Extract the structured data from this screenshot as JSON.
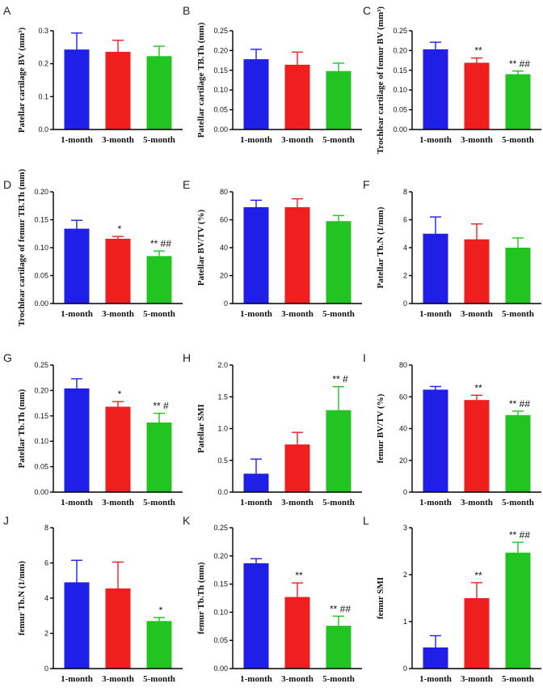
{
  "colors": {
    "blue": "#1f1fe8",
    "red": "#ef1f1f",
    "green": "#22c422"
  },
  "chart_data": [
    {
      "letter": "A",
      "type": "bar",
      "ylabel": "Patellar cartilage BV (mm³)",
      "ylim": [
        0,
        0.3
      ],
      "ticks": [
        "0.0",
        "0.1",
        "0.2",
        "0.3"
      ],
      "categories": [
        "1-month",
        "3-month",
        "5-month"
      ],
      "values": [
        0.243,
        0.236,
        0.223
      ],
      "errors": [
        0.05,
        0.035,
        0.03
      ],
      "annotations": [
        "",
        "",
        ""
      ]
    },
    {
      "letter": "B",
      "type": "bar",
      "ylabel": "Patellar cartilage TB.Th (mm)",
      "ylim": [
        0,
        0.25
      ],
      "ticks": [
        "0.00",
        "0.05",
        "0.10",
        "0.15",
        "0.20",
        "0.25"
      ],
      "categories": [
        "1-month",
        "3-month",
        "5-month"
      ],
      "values": [
        0.178,
        0.164,
        0.148
      ],
      "errors": [
        0.025,
        0.032,
        0.02
      ],
      "annotations": [
        "",
        "",
        ""
      ]
    },
    {
      "letter": "C",
      "type": "bar",
      "ylabel": "Trochlear cartilage of femur BV (mm³)",
      "ylim": [
        0,
        0.25
      ],
      "ticks": [
        "0.00",
        "0.05",
        "0.10",
        "0.15",
        "0.20",
        "0.25"
      ],
      "categories": [
        "1-month",
        "3-month",
        "5-month"
      ],
      "values": [
        0.203,
        0.169,
        0.14
      ],
      "errors": [
        0.018,
        0.012,
        0.008
      ],
      "annotations": [
        "",
        "**",
        "** ##"
      ]
    },
    {
      "letter": "D",
      "type": "bar",
      "ylabel": "Trochlear cartilage of femur TB.Th (mm)",
      "ylim": [
        0,
        0.2
      ],
      "ticks": [
        "0.00",
        "0.05",
        "0.10",
        "0.15",
        "0.20"
      ],
      "categories": [
        "1-month",
        "3-month",
        "5-month"
      ],
      "values": [
        0.134,
        0.116,
        0.085
      ],
      "errors": [
        0.015,
        0.004,
        0.009
      ],
      "annotations": [
        "",
        "*",
        "** ##"
      ]
    },
    {
      "letter": "E",
      "type": "bar",
      "ylabel": "Patellar BV/TV (%)",
      "ylim": [
        0,
        80
      ],
      "ticks": [
        "0",
        "20",
        "40",
        "60",
        "80"
      ],
      "categories": [
        "1-month",
        "3-month",
        "5-month"
      ],
      "values": [
        69,
        69,
        59
      ],
      "errors": [
        5,
        6,
        4
      ],
      "annotations": [
        "",
        "",
        ""
      ]
    },
    {
      "letter": "F",
      "type": "bar",
      "ylabel": "Patellar Tb.N (1/mm)",
      "ylim": [
        0,
        8
      ],
      "ticks": [
        "0",
        "2",
        "4",
        "6",
        "8"
      ],
      "categories": [
        "1-month",
        "3-month",
        "5-month"
      ],
      "values": [
        5.0,
        4.6,
        4.0
      ],
      "errors": [
        1.2,
        1.1,
        0.7
      ],
      "annotations": [
        "",
        "",
        ""
      ]
    },
    {
      "letter": "G",
      "type": "bar",
      "ylabel": "Patellar Tb.Th (mm)",
      "ylim": [
        0,
        0.25
      ],
      "ticks": [
        "0.00",
        "0.05",
        "0.10",
        "0.15",
        "0.20",
        "0.25"
      ],
      "categories": [
        "1-month",
        "3-month",
        "5-month"
      ],
      "values": [
        0.204,
        0.168,
        0.137
      ],
      "errors": [
        0.019,
        0.01,
        0.018
      ],
      "annotations": [
        "",
        "*",
        "** #"
      ]
    },
    {
      "letter": "H",
      "type": "bar",
      "ylabel": "Patellar SMI",
      "ylim": [
        0,
        2.0
      ],
      "ticks": [
        "0.0",
        "0.5",
        "1.0",
        "1.5",
        "2.0"
      ],
      "categories": [
        "1-month",
        "3-month",
        "5-month"
      ],
      "values": [
        0.29,
        0.75,
        1.29
      ],
      "errors": [
        0.23,
        0.19,
        0.37
      ],
      "annotations": [
        "",
        "",
        "** #"
      ]
    },
    {
      "letter": "I",
      "type": "bar",
      "ylabel": "femur BV/TV (%)",
      "ylim": [
        0,
        80
      ],
      "ticks": [
        "0",
        "20",
        "40",
        "60",
        "80"
      ],
      "categories": [
        "1-month",
        "3-month",
        "5-month"
      ],
      "values": [
        64.5,
        58,
        48.5
      ],
      "errors": [
        2.0,
        3.0,
        2.5
      ],
      "annotations": [
        "",
        "**",
        "** ##"
      ]
    },
    {
      "letter": "J",
      "type": "bar",
      "ylabel": "femur Tb.N (1/mm)",
      "ylim": [
        0,
        8
      ],
      "ticks": [
        "0",
        "2",
        "4",
        "6",
        "8"
      ],
      "categories": [
        "1-month",
        "3-month",
        "5-month"
      ],
      "values": [
        4.9,
        4.55,
        2.7
      ],
      "errors": [
        1.25,
        1.5,
        0.2
      ],
      "annotations": [
        "",
        "",
        "*"
      ]
    },
    {
      "letter": "K",
      "type": "bar",
      "ylabel": "femur Tb.Th (mm)",
      "ylim": [
        0,
        0.25
      ],
      "ticks": [
        "0.00",
        "0.05",
        "0.10",
        "0.15",
        "0.20",
        "0.25"
      ],
      "categories": [
        "1-month",
        "3-month",
        "5-month"
      ],
      "values": [
        0.187,
        0.127,
        0.076
      ],
      "errors": [
        0.008,
        0.025,
        0.017
      ],
      "annotations": [
        "",
        "**",
        "** ##"
      ]
    },
    {
      "letter": "L",
      "type": "bar",
      "ylabel": "femur SMI",
      "ylim": [
        0,
        3
      ],
      "ticks": [
        "0",
        "1",
        "2",
        "3"
      ],
      "categories": [
        "1-month",
        "3-month",
        "5-month"
      ],
      "values": [
        0.45,
        1.5,
        2.47
      ],
      "errors": [
        0.25,
        0.33,
        0.22
      ],
      "annotations": [
        "",
        "**",
        "** ##"
      ]
    }
  ]
}
